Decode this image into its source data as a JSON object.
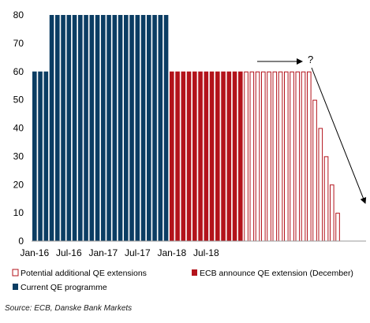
{
  "chart_data": {
    "type": "bar",
    "title": "",
    "xlabel": "",
    "ylabel": "",
    "ylim": [
      0,
      80
    ],
    "yticks": [
      0,
      10,
      20,
      30,
      40,
      50,
      60,
      70,
      80
    ],
    "x_tick_labels": [
      "Jan-16",
      "Jul-16",
      "Jan-17",
      "Jul-17",
      "Jan-18",
      "Jul-18"
    ],
    "series": [
      {
        "name": "Current QE programme",
        "style": "solid",
        "color": "#0b3d63",
        "values": [
          60,
          60,
          60,
          80,
          80,
          80,
          80,
          80,
          80,
          80,
          80,
          80,
          80,
          80,
          80,
          80,
          80,
          80,
          80,
          80,
          80,
          80,
          80,
          80
        ]
      },
      {
        "name": "ECB announce QE extension (December)",
        "style": "solid",
        "color": "#b3131b",
        "values": [
          60,
          60,
          60,
          60,
          60,
          60,
          60,
          60,
          60,
          60,
          60,
          60,
          60
        ]
      },
      {
        "name": "Potential additional QE extensions",
        "style": "outline",
        "color": "#b3131b",
        "values": [
          60,
          60,
          60,
          60,
          60,
          60,
          60,
          60,
          60,
          60,
          60,
          60,
          50,
          40,
          30,
          20,
          10
        ]
      }
    ],
    "annotations": [
      {
        "text": "?",
        "type": "arrow-flat"
      },
      {
        "type": "arrow-down"
      }
    ],
    "legend_position": "bottom",
    "grid": false
  },
  "source": "Source: ECB, Danske Bank Markets"
}
